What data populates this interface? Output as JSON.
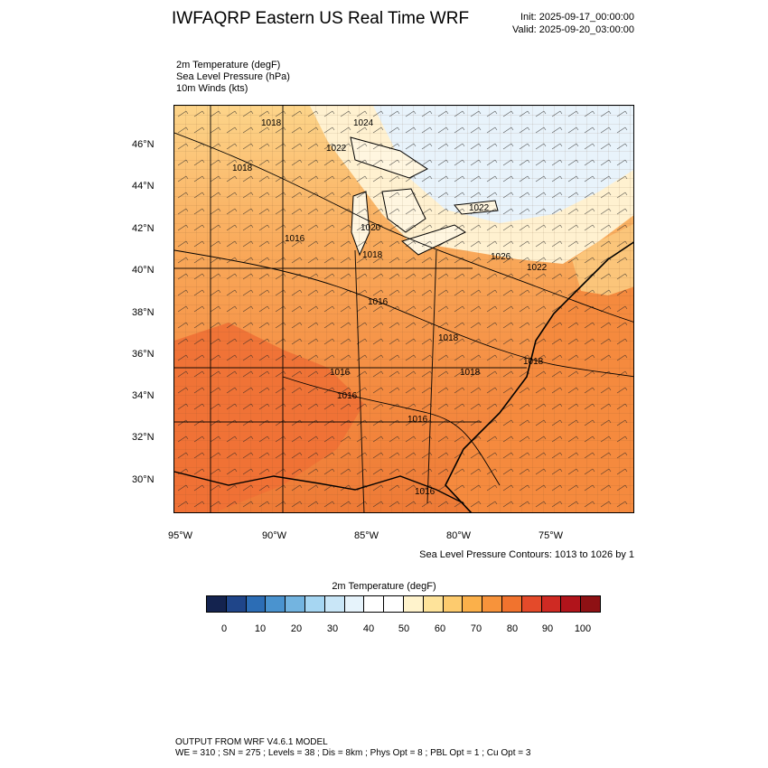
{
  "header": {
    "title": "IWFAQRP Eastern US Real Time WRF",
    "init": "Init: 2025-09-17_00:00:00",
    "valid": "Valid: 2025-09-20_03:00:00"
  },
  "variables": [
    "2m Temperature   (degF)",
    "Sea Level Pressure   (hPa)",
    "10m Winds   (kts)"
  ],
  "map": {
    "lat_labels": [
      "46°N",
      "44°N",
      "42°N",
      "40°N",
      "38°N",
      "36°N",
      "34°N",
      "32°N",
      "30°N"
    ],
    "lon_labels": [
      "95°W",
      "90°W",
      "85°W",
      "80°W",
      "75°W"
    ],
    "pressure_labels": [
      "1018",
      "1024",
      "1022",
      "1018",
      "1016",
      "1020",
      "1018",
      "1022",
      "1026",
      "1022",
      "1016",
      "1018",
      "1016",
      "1018",
      "1018",
      "1016",
      "1016",
      "1016"
    ]
  },
  "contour_note": "Sea Level Pressure Contours: 1013 to 1026 by 1",
  "colorbar": {
    "title": "2m Temperature  (degF)",
    "tick_labels": [
      "0",
      "10",
      "20",
      "30",
      "40",
      "50",
      "60",
      "70",
      "80",
      "90",
      "100"
    ],
    "colors": [
      "#14234f",
      "#1f4589",
      "#2c6db5",
      "#4a93cf",
      "#73b4e0",
      "#a6d6f2",
      "#c9e6f7",
      "#e6f3fb",
      "#ffffff",
      "#ffffff",
      "#fff3cc",
      "#fee39a",
      "#fdcb6e",
      "#fbb04a",
      "#f7933b",
      "#f1732e",
      "#e44a2a",
      "#cf2a23",
      "#b1141b",
      "#8e1114"
    ]
  },
  "footer": {
    "line1": "OUTPUT FROM WRF V4.6.1 MODEL",
    "line2": "WE = 310 ; SN = 275 ; Levels = 38 ; Dis = 8km ; Phys Opt = 8 ; PBL Opt = 1 ; Cu Opt = 3"
  }
}
